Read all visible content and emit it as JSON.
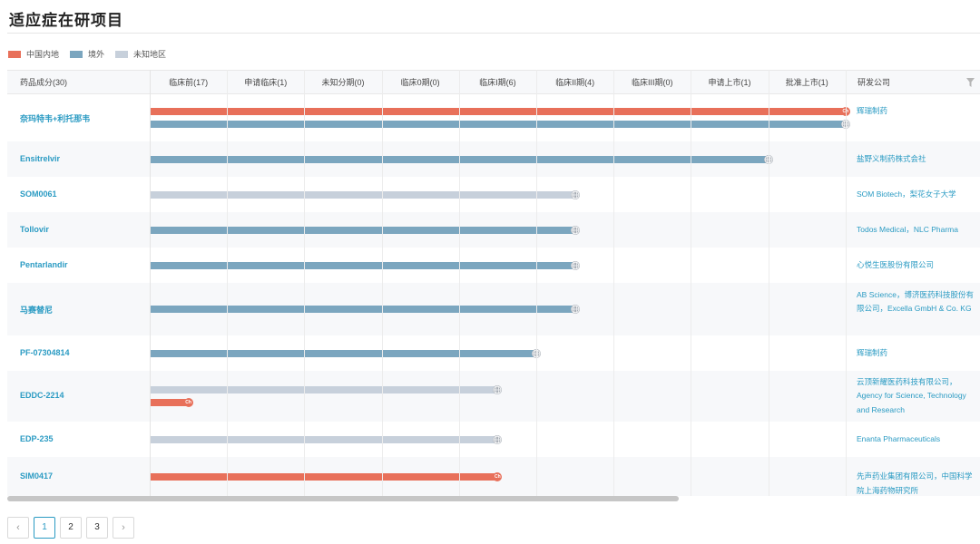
{
  "page": {
    "title": "适应症在研项目"
  },
  "legend": [
    {
      "label": "中国内地",
      "color": "#e8705a"
    },
    {
      "label": "境外",
      "color": "#7ba6bf"
    },
    {
      "label": "未知地区",
      "color": "#c7d0db"
    }
  ],
  "colors": {
    "cn": "#e8705a",
    "overseas": "#7ba6bf",
    "unknown": "#c7d0db",
    "link": "#2b9bc3"
  },
  "table": {
    "name_header": "药品成分(30)",
    "company_header": "研发公司",
    "stages": [
      "临床前(17)",
      "申请临床(1)",
      "未知分期(0)",
      "临床0期(0)",
      "临床I期(6)",
      "临床II期(4)",
      "临床III期(0)",
      "申请上市(1)",
      "批准上市(1)"
    ],
    "rows": [
      {
        "name": "奈玛特韦+利托那韦",
        "company": "辉瑞制药",
        "bars": [
          {
            "region": "cn",
            "stage": 9,
            "marker": "Ch"
          },
          {
            "region": "overseas",
            "stage": 9,
            "marker": "globe"
          }
        ]
      },
      {
        "name": "Ensitrelvir",
        "company": "盐野义制药株式会社",
        "bars": [
          {
            "region": "overseas",
            "stage": 8,
            "marker": "globe"
          }
        ]
      },
      {
        "name": "SOM0061",
        "company": "SOM Biotech，梨花女子大学",
        "bars": [
          {
            "region": "unknown",
            "stage": 5.5,
            "marker": "globe"
          }
        ]
      },
      {
        "name": "Tollovir",
        "company": "Todos Medical，NLC Pharma",
        "bars": [
          {
            "region": "overseas",
            "stage": 5.5,
            "marker": "globe"
          }
        ]
      },
      {
        "name": "Pentarlandir",
        "company": "心悦生医股份有限公司",
        "bars": [
          {
            "region": "overseas",
            "stage": 5.5,
            "marker": "globe"
          }
        ]
      },
      {
        "name": "马赛替尼",
        "company": "AB Science，博济医药科技股份有限公司，Excella GmbH & Co. KG",
        "bars": [
          {
            "region": "overseas",
            "stage": 5.5,
            "marker": "globe"
          }
        ]
      },
      {
        "name": "PF-07304814",
        "company": "辉瑞制药",
        "bars": [
          {
            "region": "overseas",
            "stage": 5,
            "marker": "globe"
          }
        ]
      },
      {
        "name": "EDDC-2214",
        "company": "云顶新耀医药科技有限公司，Agency for Science, Technology and Research",
        "bars": [
          {
            "region": "unknown",
            "stage": 4.5,
            "marker": "globe"
          },
          {
            "region": "cn",
            "stage": 0.5,
            "marker": "Ch"
          }
        ]
      },
      {
        "name": "EDP-235",
        "company": "Enanta Pharmaceuticals",
        "bars": [
          {
            "region": "unknown",
            "stage": 4.5,
            "marker": "globe"
          }
        ]
      },
      {
        "name": "SIM0417",
        "company": "先声药业集团有限公司，中国科学院上海药物研究所",
        "bars": [
          {
            "region": "cn",
            "stage": 4.5,
            "marker": "Ch"
          }
        ]
      }
    ]
  },
  "pagination": {
    "prev": "‹",
    "next": "›",
    "pages": [
      "1",
      "2",
      "3"
    ],
    "current": "1"
  }
}
